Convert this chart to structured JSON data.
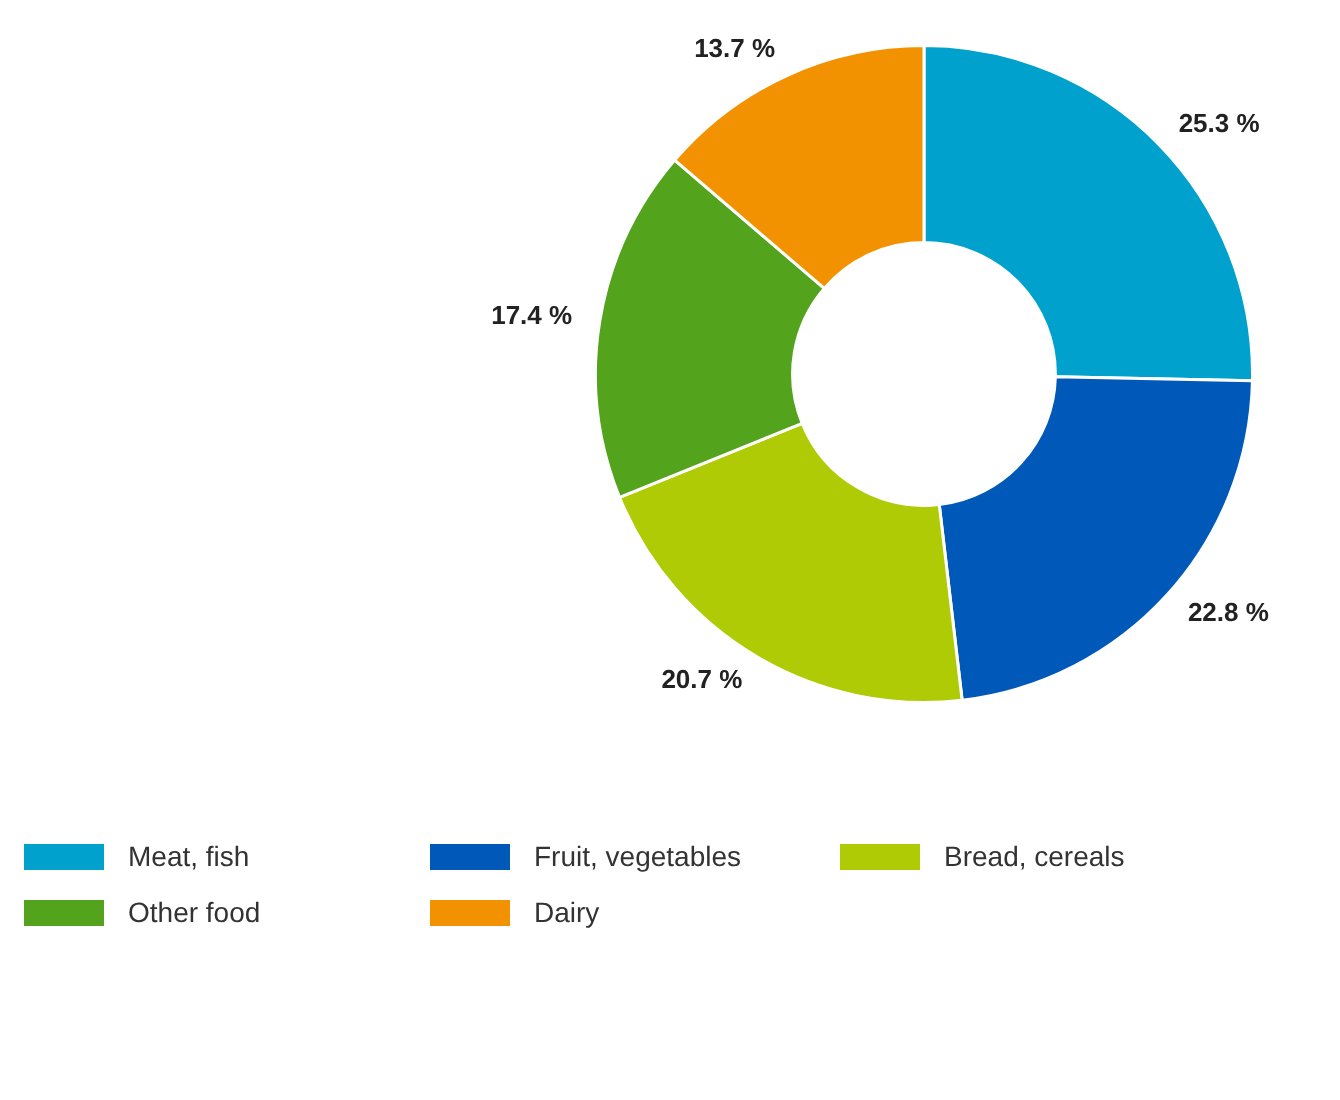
{
  "chart_data": {
    "type": "donut",
    "categories": [
      "Meat, fish",
      "Fruit, vegetables",
      "Bread, cereals",
      "Other food",
      "Dairy"
    ],
    "values": [
      25.3,
      22.8,
      20.7,
      17.4,
      13.7
    ],
    "colors": [
      "#00a1cd",
      "#0058b8",
      "#afcb05",
      "#53a31d",
      "#f39200"
    ],
    "value_labels": [
      "25.3 %",
      "22.8 %",
      "20.7 %",
      "17.4 %",
      "13.7 %"
    ],
    "legend": "bottom left"
  }
}
